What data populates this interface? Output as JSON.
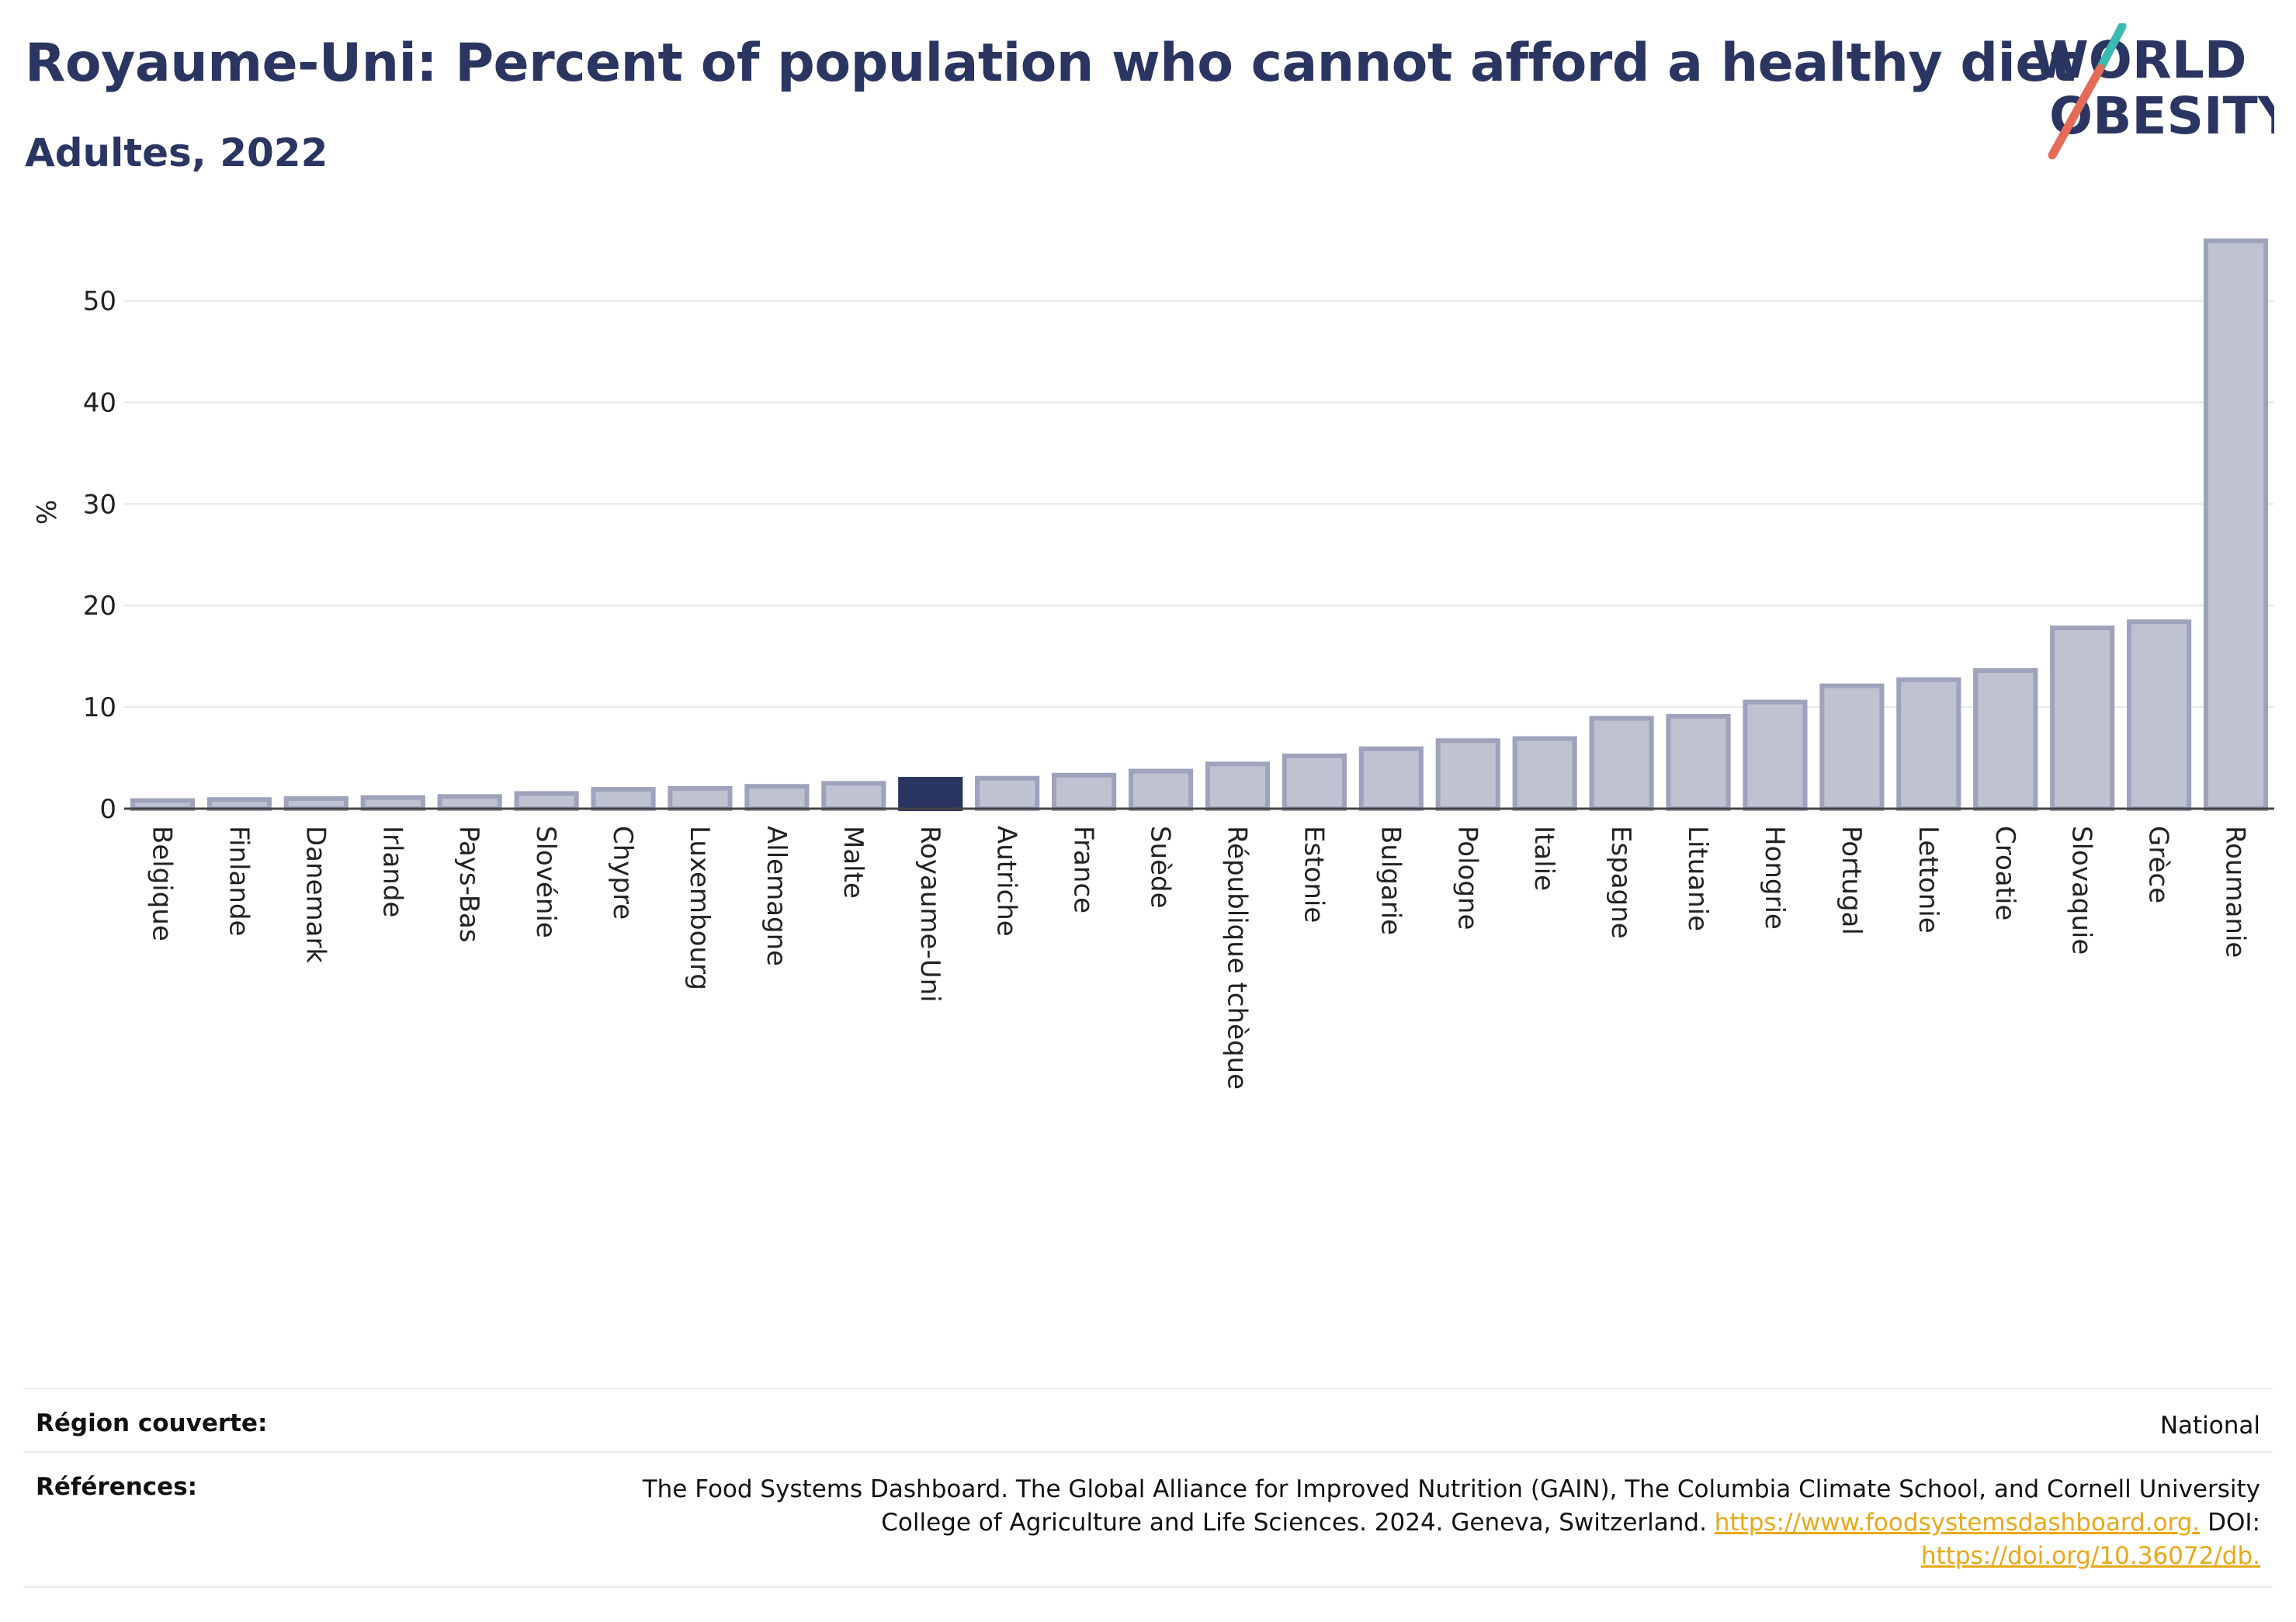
{
  "header": {
    "title": "Royaume-Uni: Percent of population who cannot afford a healthy diet",
    "subtitle": "Adultes, 2022"
  },
  "logo": {
    "line1": "WORLD",
    "line2": "OBESITY",
    "colors": {
      "text": "#2b3562",
      "slash_teal": "#3cb9b1",
      "slash_coral": "#e46b57"
    }
  },
  "chart_data": {
    "type": "bar",
    "title": "Royaume-Uni: Percent of population who cannot afford a healthy diet",
    "subtitle": "Adultes, 2022",
    "ylabel": "%",
    "xlabel": "",
    "ylim": [
      0,
      57
    ],
    "yticks": [
      0,
      10,
      20,
      30,
      40,
      50
    ],
    "grid": true,
    "highlight": "Royaume-Uni",
    "colors": {
      "bar": "#bfc2d0",
      "bar_edge": "#9ea3bb",
      "highlight": "#2b3562",
      "grid": "#e6e6ee",
      "axis": "#444444"
    },
    "categories": [
      "Belgique",
      "Finlande",
      "Danemark",
      "Irlande",
      "Pays-Bas",
      "Slovénie",
      "Chypre",
      "Luxembourg",
      "Allemagne",
      "Malte",
      "Royaume-Uni",
      "Autriche",
      "France",
      "Suède",
      "République tchèque",
      "Estonie",
      "Bulgarie",
      "Pologne",
      "Italie",
      "Espagne",
      "Lituanie",
      "Hongrie",
      "Portugal",
      "Lettonie",
      "Croatie",
      "Slovaquie",
      "Grèce",
      "Roumanie"
    ],
    "values": [
      0.8,
      0.9,
      1.0,
      1.1,
      1.2,
      1.5,
      1.9,
      2.0,
      2.2,
      2.5,
      2.9,
      3.0,
      3.3,
      3.7,
      4.4,
      5.2,
      5.9,
      6.7,
      6.9,
      8.9,
      9.1,
      10.5,
      12.1,
      12.7,
      13.6,
      17.8,
      18.4,
      55.9
    ]
  },
  "footer": {
    "region_label": "Région couverte:",
    "region_value": "National",
    "refs_label": "Références:",
    "refs_text": "The Food Systems Dashboard. The Global Alliance for Improved Nutrition (GAIN), The Columbia Climate School, and Cornell University College of Agriculture and Life Sciences. 2024. Geneva, Switzerland.",
    "refs_link1": "https://www.foodsystemsdashboard.org.",
    "refs_doi_label": "DOI:",
    "refs_link2": "https://doi.org/10.36072/db."
  }
}
